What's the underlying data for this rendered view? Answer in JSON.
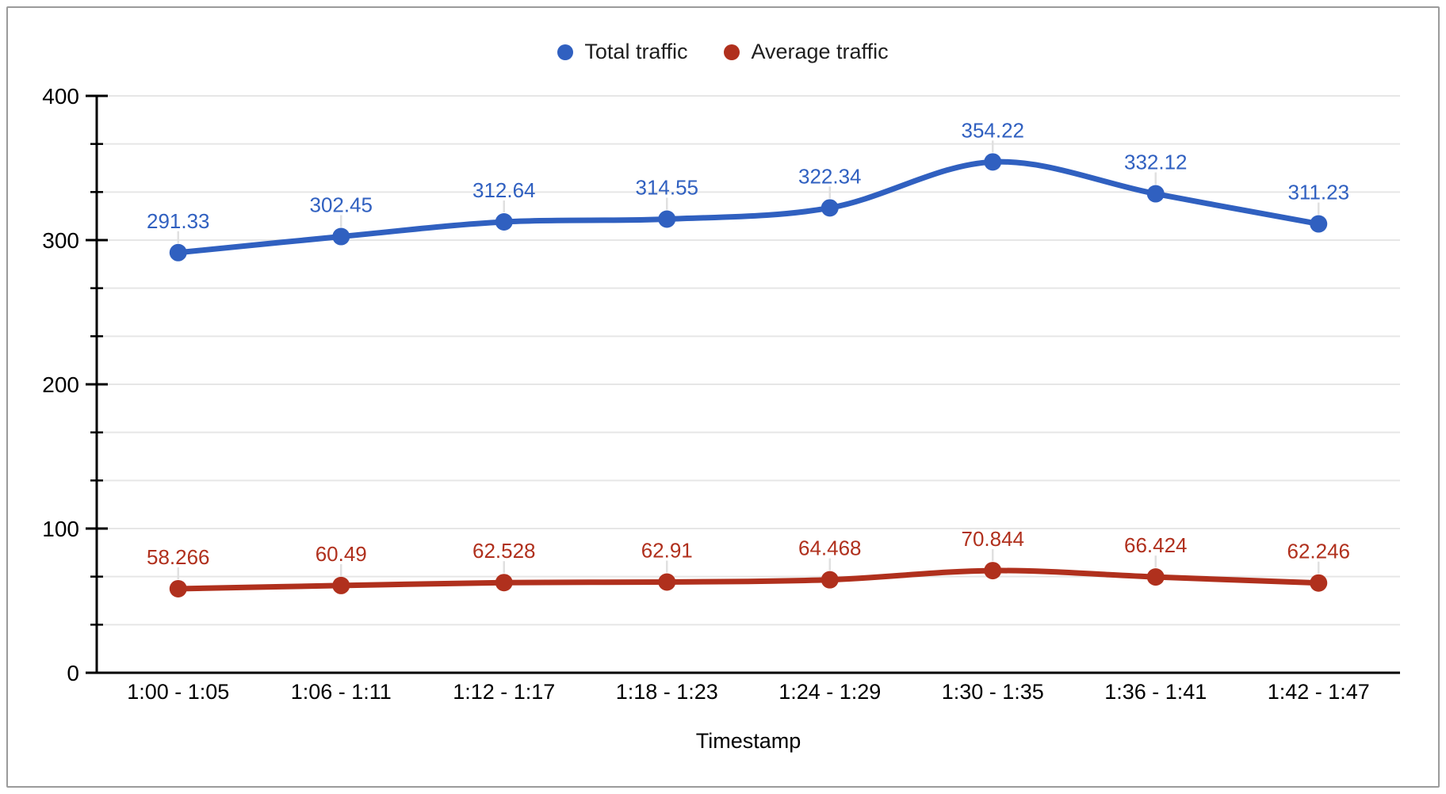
{
  "chart_data": {
    "type": "line",
    "smooth": true,
    "title": "",
    "xlabel": "Timestamp",
    "ylabel": "",
    "categories": [
      "1:00 - 1:05",
      "1:06 - 1:11",
      "1:12 - 1:17",
      "1:18 - 1:23",
      "1:24 - 1:29",
      "1:30 - 1:35",
      "1:36 - 1:41",
      "1:42 - 1:47"
    ],
    "series": [
      {
        "name": "Total traffic",
        "color": "#3060c0",
        "values": [
          291.33,
          302.45,
          312.64,
          314.55,
          322.34,
          354.22,
          332.12,
          311.23
        ]
      },
      {
        "name": "Average traffic",
        "color": "#b0301d",
        "values": [
          58.266,
          60.49,
          62.528,
          62.91,
          64.468,
          70.844,
          66.424,
          62.246
        ]
      }
    ],
    "ylim": [
      0,
      400
    ],
    "y_major_ticks": [
      0,
      100,
      200,
      300,
      400
    ],
    "y_minor_divisions_per_major": 3,
    "grid": true,
    "legend_position": "top",
    "style_colors": {
      "grid": "#e6e6e6",
      "axis": "#000000",
      "tick_text": "#000000",
      "callout": "#e0e0e0"
    }
  }
}
